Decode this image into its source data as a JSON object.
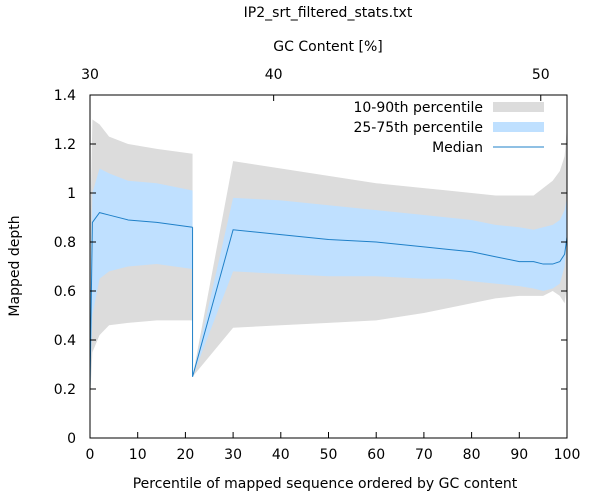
{
  "chart_data": {
    "type": "area",
    "title": "IP2_srt_filtered_stats.txt",
    "xlabel": "Percentile of mapped sequence ordered by GC content",
    "ylabel": "Mapped depth",
    "x2label": "GC Content [%]",
    "xlim": [
      0,
      100
    ],
    "ylim": [
      0,
      1.4
    ],
    "xticks": [
      0,
      10,
      20,
      30,
      40,
      50,
      60,
      70,
      80,
      90,
      100
    ],
    "yticks": [
      "0",
      "0.2",
      "0.4",
      "0.6",
      "0.8",
      "1",
      "1.2",
      "1.4"
    ],
    "x2ticks": [
      {
        "label": "30",
        "x": 0
      },
      {
        "label": "40",
        "x": 38.5
      },
      {
        "label": "50",
        "x": 94.5
      }
    ],
    "legend_position": "top-right",
    "legend": [
      {
        "label": "10-90th percentile",
        "color": "#dcdcdc"
      },
      {
        "label": "25-75th percentile",
        "color": "#bfe0ff"
      },
      {
        "label": "Median",
        "color": "#1f80c8"
      }
    ],
    "segments": [
      {
        "x": [
          0,
          0.5,
          2,
          4,
          8,
          14,
          21.5
        ],
        "p10": [
          0.15,
          0.35,
          0.42,
          0.46,
          0.47,
          0.48,
          0.48
        ],
        "p25": [
          0.2,
          0.5,
          0.65,
          0.68,
          0.7,
          0.71,
          0.69
        ],
        "median": [
          0.2,
          0.88,
          0.92,
          0.91,
          0.89,
          0.88,
          0.86
        ],
        "p75": [
          0.45,
          1.0,
          1.1,
          1.08,
          1.05,
          1.04,
          1.01
        ],
        "p90": [
          0.8,
          1.3,
          1.28,
          1.23,
          1.2,
          1.18,
          1.16
        ]
      },
      {
        "x": [
          21.5,
          30,
          40,
          50,
          60,
          70,
          75,
          80,
          85,
          90,
          93,
          95,
          97,
          98.5,
          99.5,
          100
        ],
        "p10": [
          0.25,
          0.45,
          0.46,
          0.47,
          0.48,
          0.51,
          0.53,
          0.55,
          0.57,
          0.58,
          0.58,
          0.58,
          0.6,
          0.58,
          0.55,
          0.62
        ],
        "p25": [
          0.25,
          0.68,
          0.67,
          0.66,
          0.66,
          0.65,
          0.65,
          0.64,
          0.63,
          0.62,
          0.61,
          0.6,
          0.61,
          0.63,
          0.7,
          0.82
        ],
        "median": [
          0.25,
          0.85,
          0.83,
          0.81,
          0.8,
          0.78,
          0.77,
          0.76,
          0.74,
          0.72,
          0.72,
          0.71,
          0.71,
          0.72,
          0.75,
          0.82
        ],
        "p75": [
          0.25,
          0.98,
          0.97,
          0.95,
          0.93,
          0.91,
          0.9,
          0.89,
          0.87,
          0.86,
          0.85,
          0.86,
          0.87,
          0.89,
          0.93,
          0.98
        ],
        "p90": [
          0.25,
          1.13,
          1.1,
          1.07,
          1.04,
          1.02,
          1.01,
          1.0,
          0.99,
          0.99,
          0.99,
          1.02,
          1.05,
          1.09,
          1.15,
          1.27
        ]
      }
    ]
  }
}
